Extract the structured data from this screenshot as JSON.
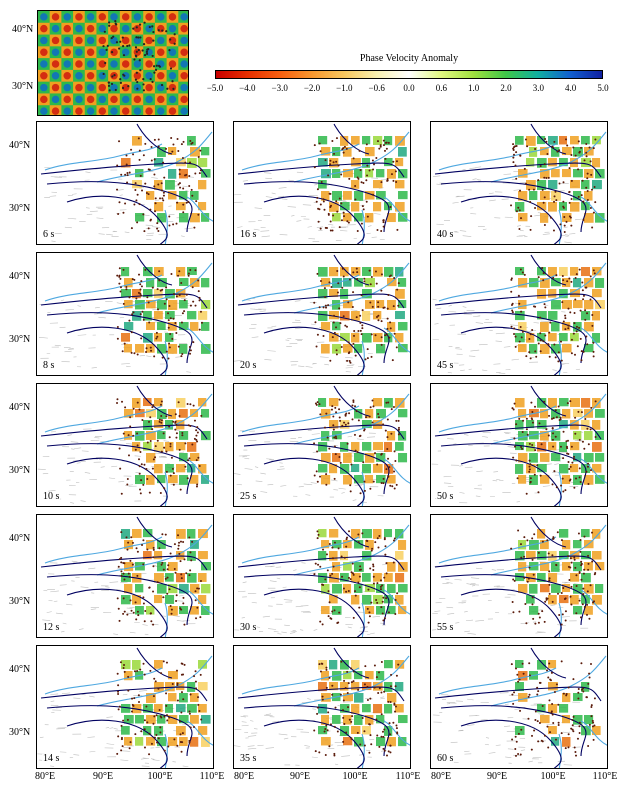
{
  "colorbar": {
    "title": "Phase Velocity Anomaly",
    "ticks": [
      "−5.0",
      "−4.0",
      "−3.0",
      "−2.0",
      "−1.0",
      "−0.6",
      "0.0",
      "0.6",
      "1.0",
      "2.0",
      "3.0",
      "4.0",
      "5.0"
    ],
    "colors": [
      "#c80000",
      "#e83000",
      "#f86010",
      "#f89830",
      "#f8c860",
      "#f8f0b0",
      "#ffffff",
      "#e0f880",
      "#a0e040",
      "#40c848",
      "#10b0a0",
      "#1060d0",
      "#1020a0"
    ]
  },
  "latitude_labels": [
    "40°N",
    "30°N"
  ],
  "longitude_labels": [
    "80°E",
    "90°E",
    "100°E",
    "110°E"
  ],
  "periods": [
    "6 s",
    "16 s",
    "40 s",
    "8 s",
    "20 s",
    "45 s",
    "10 s",
    "25 s",
    "50 s",
    "12 s",
    "30 s",
    "55 s",
    "14 s",
    "35 s",
    "60 s"
  ],
  "map_colors": {
    "rivers": "#4fa8e0",
    "faults": "#000060",
    "stations": "#5a1a0a",
    "terrain": "#bdbdbd"
  }
}
